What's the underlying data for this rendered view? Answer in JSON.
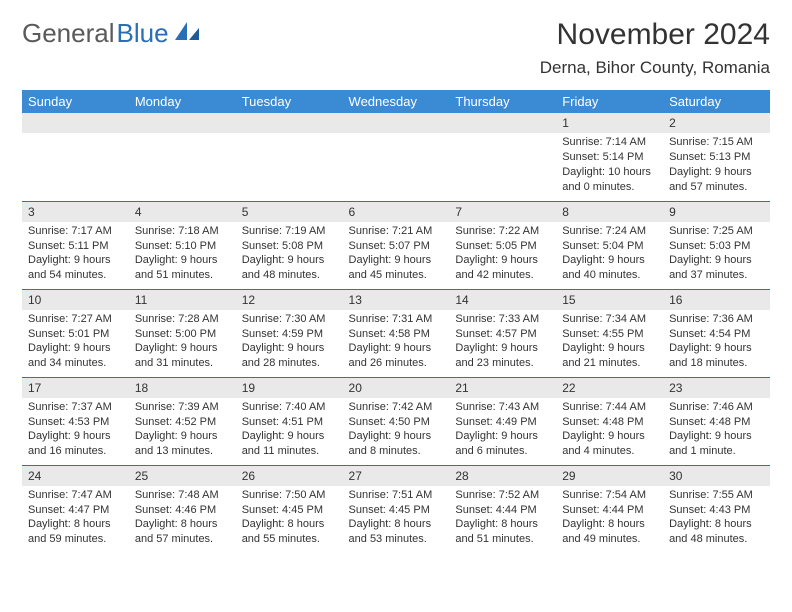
{
  "logo": {
    "general": "General",
    "blue": "Blue"
  },
  "title": "November 2024",
  "location": "Derna, Bihor County, Romania",
  "colors": {
    "header_bg": "#3b8bd4",
    "header_text": "#ffffff",
    "row_border": "#3b6fa8",
    "daynum_bg": "#e9e9e9",
    "logo_gray": "#5a5a5a",
    "logo_blue": "#2a6fb5",
    "text": "#333333",
    "page_bg": "#ffffff"
  },
  "weekdays": [
    "Sunday",
    "Monday",
    "Tuesday",
    "Wednesday",
    "Thursday",
    "Friday",
    "Saturday"
  ],
  "weeks": [
    [
      {
        "empty": true
      },
      {
        "empty": true
      },
      {
        "empty": true
      },
      {
        "empty": true
      },
      {
        "empty": true
      },
      {
        "day": "1",
        "sunrise": "Sunrise: 7:14 AM",
        "sunset": "Sunset: 5:14 PM",
        "daylight": "Daylight: 10 hours and 0 minutes."
      },
      {
        "day": "2",
        "sunrise": "Sunrise: 7:15 AM",
        "sunset": "Sunset: 5:13 PM",
        "daylight": "Daylight: 9 hours and 57 minutes."
      }
    ],
    [
      {
        "day": "3",
        "sunrise": "Sunrise: 7:17 AM",
        "sunset": "Sunset: 5:11 PM",
        "daylight": "Daylight: 9 hours and 54 minutes."
      },
      {
        "day": "4",
        "sunrise": "Sunrise: 7:18 AM",
        "sunset": "Sunset: 5:10 PM",
        "daylight": "Daylight: 9 hours and 51 minutes."
      },
      {
        "day": "5",
        "sunrise": "Sunrise: 7:19 AM",
        "sunset": "Sunset: 5:08 PM",
        "daylight": "Daylight: 9 hours and 48 minutes."
      },
      {
        "day": "6",
        "sunrise": "Sunrise: 7:21 AM",
        "sunset": "Sunset: 5:07 PM",
        "daylight": "Daylight: 9 hours and 45 minutes."
      },
      {
        "day": "7",
        "sunrise": "Sunrise: 7:22 AM",
        "sunset": "Sunset: 5:05 PM",
        "daylight": "Daylight: 9 hours and 42 minutes."
      },
      {
        "day": "8",
        "sunrise": "Sunrise: 7:24 AM",
        "sunset": "Sunset: 5:04 PM",
        "daylight": "Daylight: 9 hours and 40 minutes."
      },
      {
        "day": "9",
        "sunrise": "Sunrise: 7:25 AM",
        "sunset": "Sunset: 5:03 PM",
        "daylight": "Daylight: 9 hours and 37 minutes."
      }
    ],
    [
      {
        "day": "10",
        "sunrise": "Sunrise: 7:27 AM",
        "sunset": "Sunset: 5:01 PM",
        "daylight": "Daylight: 9 hours and 34 minutes."
      },
      {
        "day": "11",
        "sunrise": "Sunrise: 7:28 AM",
        "sunset": "Sunset: 5:00 PM",
        "daylight": "Daylight: 9 hours and 31 minutes."
      },
      {
        "day": "12",
        "sunrise": "Sunrise: 7:30 AM",
        "sunset": "Sunset: 4:59 PM",
        "daylight": "Daylight: 9 hours and 28 minutes."
      },
      {
        "day": "13",
        "sunrise": "Sunrise: 7:31 AM",
        "sunset": "Sunset: 4:58 PM",
        "daylight": "Daylight: 9 hours and 26 minutes."
      },
      {
        "day": "14",
        "sunrise": "Sunrise: 7:33 AM",
        "sunset": "Sunset: 4:57 PM",
        "daylight": "Daylight: 9 hours and 23 minutes."
      },
      {
        "day": "15",
        "sunrise": "Sunrise: 7:34 AM",
        "sunset": "Sunset: 4:55 PM",
        "daylight": "Daylight: 9 hours and 21 minutes."
      },
      {
        "day": "16",
        "sunrise": "Sunrise: 7:36 AM",
        "sunset": "Sunset: 4:54 PM",
        "daylight": "Daylight: 9 hours and 18 minutes."
      }
    ],
    [
      {
        "day": "17",
        "sunrise": "Sunrise: 7:37 AM",
        "sunset": "Sunset: 4:53 PM",
        "daylight": "Daylight: 9 hours and 16 minutes."
      },
      {
        "day": "18",
        "sunrise": "Sunrise: 7:39 AM",
        "sunset": "Sunset: 4:52 PM",
        "daylight": "Daylight: 9 hours and 13 minutes."
      },
      {
        "day": "19",
        "sunrise": "Sunrise: 7:40 AM",
        "sunset": "Sunset: 4:51 PM",
        "daylight": "Daylight: 9 hours and 11 minutes."
      },
      {
        "day": "20",
        "sunrise": "Sunrise: 7:42 AM",
        "sunset": "Sunset: 4:50 PM",
        "daylight": "Daylight: 9 hours and 8 minutes."
      },
      {
        "day": "21",
        "sunrise": "Sunrise: 7:43 AM",
        "sunset": "Sunset: 4:49 PM",
        "daylight": "Daylight: 9 hours and 6 minutes."
      },
      {
        "day": "22",
        "sunrise": "Sunrise: 7:44 AM",
        "sunset": "Sunset: 4:48 PM",
        "daylight": "Daylight: 9 hours and 4 minutes."
      },
      {
        "day": "23",
        "sunrise": "Sunrise: 7:46 AM",
        "sunset": "Sunset: 4:48 PM",
        "daylight": "Daylight: 9 hours and 1 minute."
      }
    ],
    [
      {
        "day": "24",
        "sunrise": "Sunrise: 7:47 AM",
        "sunset": "Sunset: 4:47 PM",
        "daylight": "Daylight: 8 hours and 59 minutes."
      },
      {
        "day": "25",
        "sunrise": "Sunrise: 7:48 AM",
        "sunset": "Sunset: 4:46 PM",
        "daylight": "Daylight: 8 hours and 57 minutes."
      },
      {
        "day": "26",
        "sunrise": "Sunrise: 7:50 AM",
        "sunset": "Sunset: 4:45 PM",
        "daylight": "Daylight: 8 hours and 55 minutes."
      },
      {
        "day": "27",
        "sunrise": "Sunrise: 7:51 AM",
        "sunset": "Sunset: 4:45 PM",
        "daylight": "Daylight: 8 hours and 53 minutes."
      },
      {
        "day": "28",
        "sunrise": "Sunrise: 7:52 AM",
        "sunset": "Sunset: 4:44 PM",
        "daylight": "Daylight: 8 hours and 51 minutes."
      },
      {
        "day": "29",
        "sunrise": "Sunrise: 7:54 AM",
        "sunset": "Sunset: 4:44 PM",
        "daylight": "Daylight: 8 hours and 49 minutes."
      },
      {
        "day": "30",
        "sunrise": "Sunrise: 7:55 AM",
        "sunset": "Sunset: 4:43 PM",
        "daylight": "Daylight: 8 hours and 48 minutes."
      }
    ]
  ]
}
